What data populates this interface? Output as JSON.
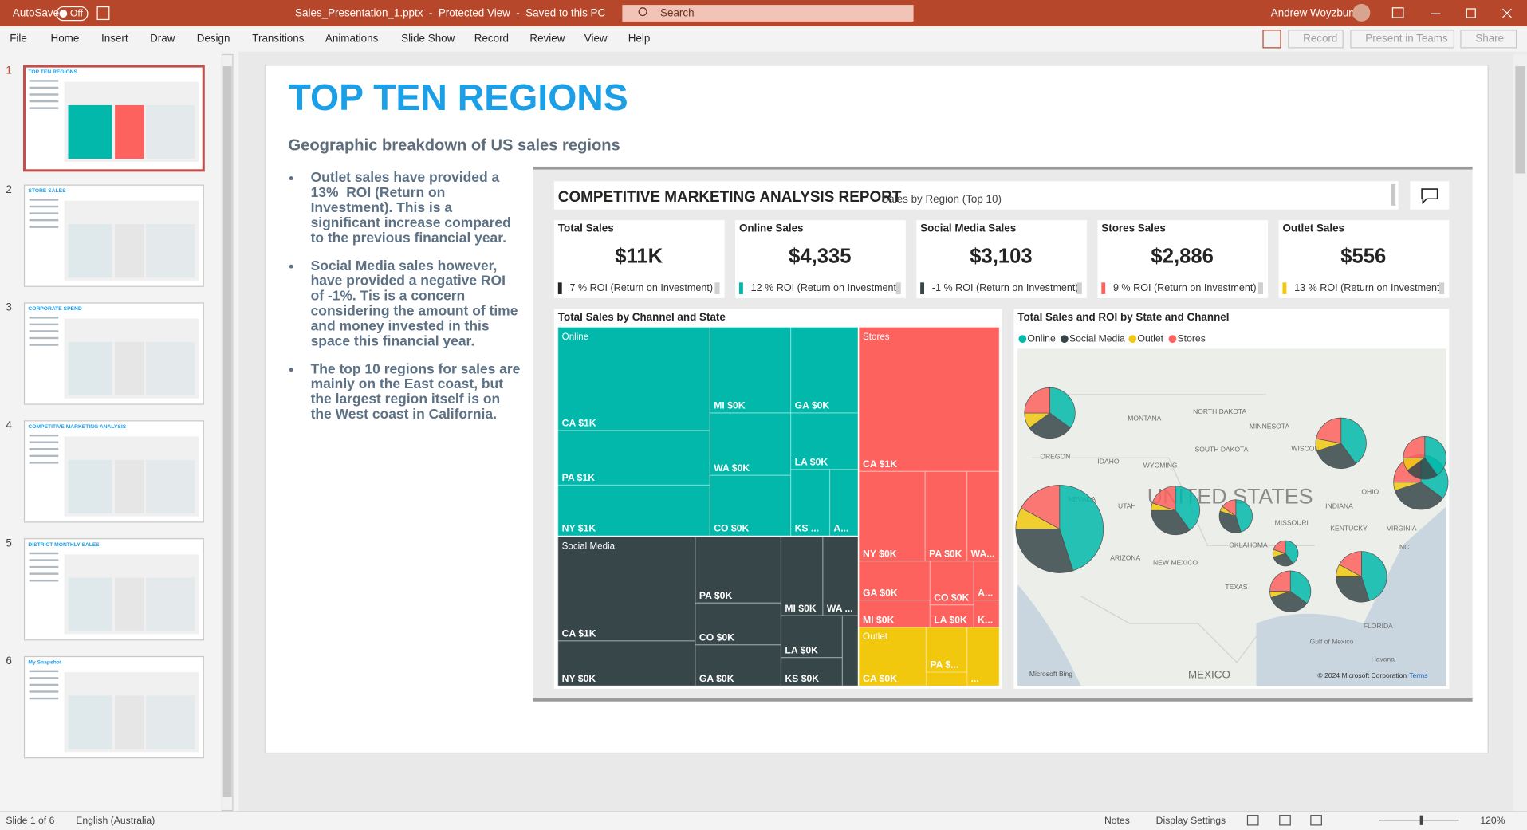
{
  "title_bar": {
    "autosave": "AutoSave",
    "toggle": "Off",
    "file_name": "Sales_Presentation_1.pptx  -  Protected View  -  Saved to this PC",
    "search": "Search",
    "user": "Andrew Woyzbun"
  },
  "menu": [
    "File",
    "Home",
    "Insert",
    "Draw",
    "Design",
    "Transitions",
    "Animations",
    "Slide Show",
    "Record",
    "Review",
    "View",
    "Help"
  ],
  "ribbon_buttons": [
    "Record",
    "Present in Teams",
    "Share"
  ],
  "thumbnails": [
    {
      "number": "1",
      "title": "TOP TEN REGIONS"
    },
    {
      "number": "2",
      "title": "STORE SALES"
    },
    {
      "number": "3",
      "title": "CORPORATE SPEND"
    },
    {
      "number": "4",
      "title": "COMPETITIVE MARKETING ANALYSIS"
    },
    {
      "number": "5",
      "title": "DISTRICT MONTHLY SALES"
    },
    {
      "number": "6",
      "title": "My Snapshot"
    }
  ],
  "slide": {
    "title": "TOP TEN REGIONS",
    "subtitle": "Geographic breakdown of US sales regions",
    "bullets": [
      [
        "Outlet sales have provided a",
        "13%  ROI (Return on",
        "Investment). This is a",
        "significant increase compared",
        "to the previous financial year."
      ],
      [
        "Social Media sales however,",
        "have provided a negative ROI",
        "of -1%. Tis is a concern",
        "considering the amount of time",
        "and money invested in this",
        "space this financial year."
      ],
      [
        "The top 10 regions for sales are",
        "mainly on the East coast, but",
        "the largest region itself is on",
        "the West coast in California."
      ]
    ],
    "report": {
      "title": "COMPETITIVE MARKETING ANALYSIS REPORT",
      "subtitle": "Sales by Region (Top 10)",
      "cards": [
        {
          "label": "Total Sales",
          "value": "$11K",
          "roi": "7 % ROI (Return on Investment)"
        },
        {
          "label": "Online Sales",
          "value": "$4,335",
          "roi": "12 % ROI (Return on Investment)"
        },
        {
          "label": "Social Media Sales",
          "value": "$3,103",
          "roi": "-1 % ROI (Return on Investment)"
        },
        {
          "label": "Stores Sales",
          "value": "$2,886",
          "roi": "9 % ROI (Return on Investment)"
        },
        {
          "label": "Outlet Sales",
          "value": "$556",
          "roi": "13 % ROI (Return on Investment)"
        }
      ],
      "treemap": {
        "title": "Total Sales by Channel and State",
        "groups": [
          {
            "name": "Online",
            "tiles": [
              "CA $1K",
              "PA $1K",
              "NY $1K",
              "MI $0K",
              "WA $0K",
              "CO $0K",
              "GA $0K",
              "LA $0K",
              "KS ...",
              "A..."
            ]
          },
          {
            "name": "Stores",
            "tiles": [
              "CA $1K",
              "NY $0K",
              "PA $0K",
              "WA...",
              "GA $0K",
              "MI $0K",
              "CO $0K",
              "LA $0K",
              "A...",
              "K..."
            ]
          },
          {
            "name": "Social Media",
            "tiles": [
              "CA $1K",
              "NY $0K",
              "PA $0K",
              "CO $0K",
              "GA $0K",
              "MI $0K",
              "WA ...",
              "LA $0K",
              "KS $0K"
            ]
          },
          {
            "name": "Outlet",
            "tiles": [
              "CA $0K",
              "PA $...",
              "..."
            ]
          }
        ]
      },
      "map": {
        "title": "Total Sales and ROI by State and Channel",
        "legend": [
          "Online",
          "Social Media",
          "Outlet",
          "Stores"
        ],
        "labels": [
          "MONTANA",
          "NORTH DAKOTA",
          "MINNESOTA",
          "OREGON",
          "IDAHO",
          "SOUTH DAKOTA",
          "WYOMING",
          "UTAH",
          "NEVADA",
          "ARIZONA",
          "NEW MEXICO",
          "TEXAS",
          "OKLAHOMA",
          "MISSOURI",
          "INDIANA",
          "KENTUCKY",
          "OHIO",
          "VIRGINIA",
          "NC",
          "FLORIDA",
          "Gulf of Mexico",
          "MEXICO",
          "Havana",
          "WISCON"
        ],
        "country": "UNITED STATES",
        "attribution": "Microsoft Bing",
        "copyright": "© 2024 Microsoft Corporation",
        "terms": "Terms"
      }
    }
  },
  "status_bar": {
    "slide": "Slide 1 of 6",
    "language": "English (Australia)",
    "notes": "Notes",
    "display": "Display Settings",
    "zoom": "120%"
  }
}
